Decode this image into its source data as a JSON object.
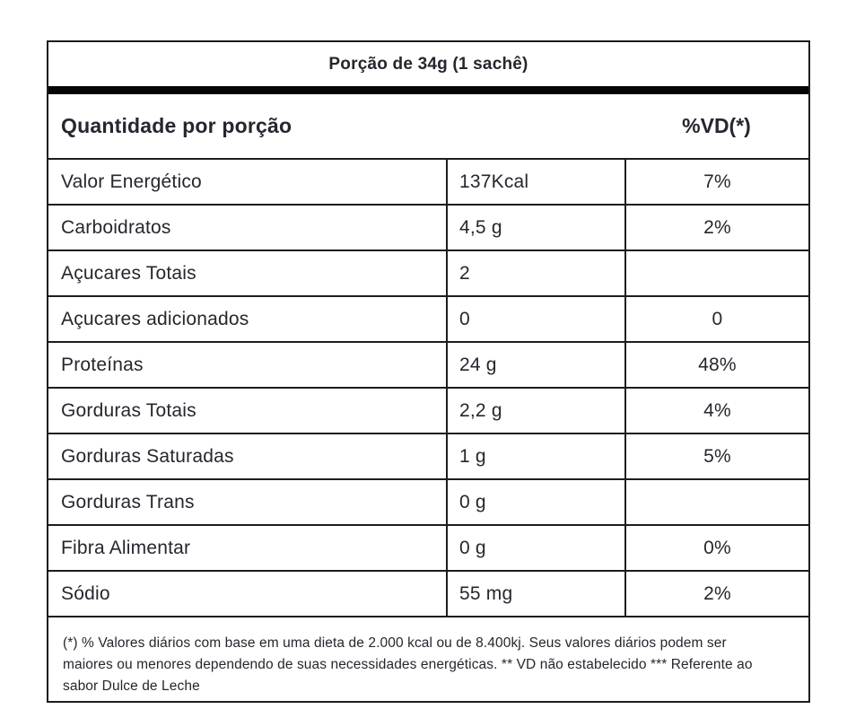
{
  "label": {
    "serving_title": "Porção de 34g (1 sachê)",
    "header": {
      "quantity_label": "Quantidade por porção",
      "dv_label": "%VD(*)"
    },
    "rows": [
      {
        "nutrient": "Valor Energético",
        "amount": "137Kcal",
        "dv": "7%"
      },
      {
        "nutrient": "Carboidratos",
        "amount": "4,5 g",
        "dv": "2%"
      },
      {
        "nutrient": "Açucares Totais",
        "amount": "2",
        "dv": ""
      },
      {
        "nutrient": "Açucares adicionados",
        "amount": "0",
        "dv": "0"
      },
      {
        "nutrient": "Proteínas",
        "amount": "24 g",
        "dv": "48%"
      },
      {
        "nutrient": "Gorduras Totais",
        "amount": "2,2 g",
        "dv": "4%"
      },
      {
        "nutrient": "Gorduras Saturadas",
        "amount": "1 g",
        "dv": "5%"
      },
      {
        "nutrient": "Gorduras Trans",
        "amount": "0 g",
        "dv": ""
      },
      {
        "nutrient": "Fibra Alimentar",
        "amount": "0 g",
        "dv": "0%"
      },
      {
        "nutrient": "Sódio",
        "amount": "55 mg",
        "dv": "2%"
      }
    ],
    "footnote": "(*) % Valores diários com base em uma dieta de 2.000 kcal ou de 8.400kj. Seus valores diários podem ser maiores ou menores dependendo de suas necessidades energéticas. ** VD não estabelecido *** Referente ao sabor Dulce de Leche"
  },
  "colors": {
    "text": "#26262e",
    "border": "#1d1d1f",
    "bar": "#050505",
    "background": "#ffffff"
  }
}
